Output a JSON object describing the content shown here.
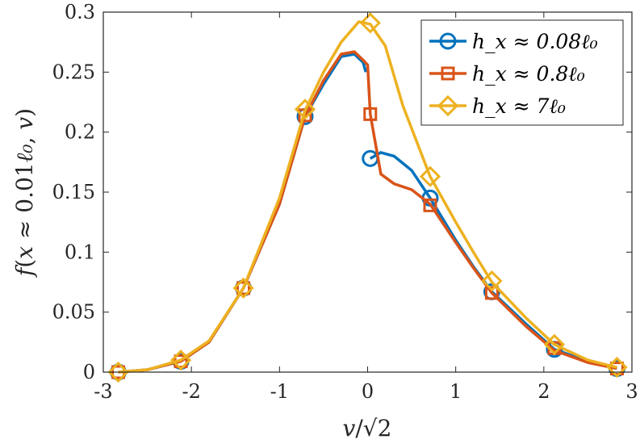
{
  "chart_data": {
    "type": "line",
    "xlabel": "v/√2",
    "ylabel": "f(x ≈ 0.01ℓ₀, v)",
    "xlim": [
      -3,
      3
    ],
    "ylim": [
      0,
      0.3
    ],
    "x_ticks": [
      "-3",
      "-2",
      "-1",
      "0",
      "1",
      "2",
      "3"
    ],
    "y_ticks": [
      "0",
      "0.05",
      "0.1",
      "0.15",
      "0.2",
      "0.25",
      "0.3"
    ],
    "grid": false,
    "legend_position": "top-right",
    "series": [
      {
        "name": "h_x ≈ 0.08ℓ₀",
        "color": "#0072BD",
        "marker": "circle",
        "segments": [
          [
            [
              -2.83,
              0.0
            ],
            [
              -2.5,
              0.002
            ],
            [
              -2.12,
              0.009
            ],
            [
              -1.8,
              0.025
            ],
            [
              -1.41,
              0.07
            ],
            [
              -1.0,
              0.14
            ],
            [
              -0.71,
              0.213
            ],
            [
              -0.5,
              0.24
            ],
            [
              -0.3,
              0.263
            ],
            [
              -0.15,
              0.265
            ],
            [
              -0.05,
              0.258
            ],
            [
              -0.02,
              0.25
            ]
          ],
          [
            [
              0.03,
              0.178
            ],
            [
              0.15,
              0.183
            ],
            [
              0.3,
              0.18
            ],
            [
              0.5,
              0.168
            ],
            [
              0.71,
              0.145
            ],
            [
              1.0,
              0.11
            ],
            [
              1.2,
              0.088
            ],
            [
              1.41,
              0.067
            ],
            [
              1.8,
              0.04
            ],
            [
              2.12,
              0.019
            ],
            [
              2.5,
              0.009
            ],
            [
              2.83,
              0.003
            ]
          ]
        ],
        "markers": [
          [
            -2.83,
            0.0
          ],
          [
            -2.12,
            0.009
          ],
          [
            -1.41,
            0.07
          ],
          [
            -0.71,
            0.213
          ],
          [
            0.03,
            0.178
          ],
          [
            0.71,
            0.145
          ],
          [
            1.41,
            0.067
          ],
          [
            2.12,
            0.019
          ],
          [
            2.83,
            0.003
          ]
        ]
      },
      {
        "name": "h_x ≈ 0.8ℓ₀",
        "color": "#D95319",
        "marker": "square",
        "segments": [
          [
            [
              -2.83,
              0.0
            ],
            [
              -2.5,
              0.002
            ],
            [
              -2.12,
              0.009
            ],
            [
              -1.8,
              0.025
            ],
            [
              -1.41,
              0.07
            ],
            [
              -1.0,
              0.14
            ],
            [
              -0.71,
              0.213
            ],
            [
              -0.5,
              0.243
            ],
            [
              -0.3,
              0.265
            ],
            [
              -0.15,
              0.267
            ],
            [
              -0.05,
              0.26
            ],
            [
              0.0,
              0.256
            ],
            [
              0.03,
              0.215
            ],
            [
              0.15,
              0.165
            ],
            [
              0.3,
              0.157
            ],
            [
              0.5,
              0.152
            ],
            [
              0.71,
              0.14
            ],
            [
              1.0,
              0.108
            ],
            [
              1.2,
              0.087
            ],
            [
              1.41,
              0.066
            ],
            [
              1.8,
              0.038
            ],
            [
              2.12,
              0.018
            ],
            [
              2.5,
              0.008
            ],
            [
              2.83,
              0.003
            ]
          ]
        ],
        "markers": [
          [
            -2.83,
            0.0
          ],
          [
            -2.12,
            0.009
          ],
          [
            -1.41,
            0.07
          ],
          [
            -0.71,
            0.214
          ],
          [
            0.03,
            0.215
          ],
          [
            0.71,
            0.139
          ],
          [
            1.41,
            0.066
          ],
          [
            2.12,
            0.02
          ],
          [
            2.83,
            0.003
          ]
        ]
      },
      {
        "name": "h_x ≈ 7ℓ₀",
        "color": "#EDB120",
        "marker": "diamond",
        "segments": [
          [
            [
              -2.83,
              0.0
            ],
            [
              -2.5,
              0.002
            ],
            [
              -2.12,
              0.01
            ],
            [
              -1.8,
              0.026
            ],
            [
              -1.41,
              0.07
            ],
            [
              -1.0,
              0.145
            ],
            [
              -0.71,
              0.218
            ],
            [
              -0.5,
              0.25
            ],
            [
              -0.3,
              0.275
            ],
            [
              -0.1,
              0.292
            ],
            [
              0.03,
              0.29
            ],
            [
              0.2,
              0.272
            ],
            [
              0.4,
              0.222
            ],
            [
              0.71,
              0.163
            ],
            [
              1.0,
              0.125
            ],
            [
              1.2,
              0.1
            ],
            [
              1.41,
              0.075
            ],
            [
              1.8,
              0.045
            ],
            [
              2.12,
              0.023
            ],
            [
              2.5,
              0.01
            ],
            [
              2.83,
              0.004
            ]
          ]
        ],
        "markers": [
          [
            -2.83,
            0.0
          ],
          [
            -2.12,
            0.01
          ],
          [
            -1.41,
            0.07
          ],
          [
            -0.71,
            0.219
          ],
          [
            0.03,
            0.291
          ],
          [
            0.71,
            0.163
          ],
          [
            1.41,
            0.076
          ],
          [
            2.12,
            0.023
          ],
          [
            2.83,
            0.004
          ]
        ]
      }
    ]
  }
}
